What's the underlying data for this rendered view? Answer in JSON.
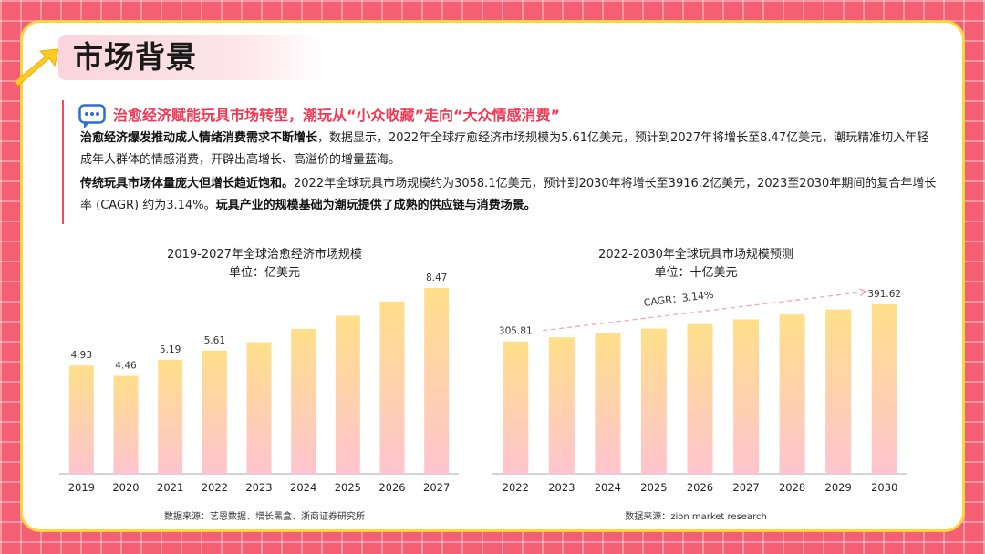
{
  "page": {
    "title": "市场背景"
  },
  "intro": {
    "headline": "治愈经济赋能玩具市场转型，潮玩从“小众收藏”走向“大众情感消费”",
    "p1_bold": "治愈经济爆发推动成人情绪消费需求不断增长",
    "p1_text": "，数据显示，2022年全球疗愈经济市场规模为5.61亿美元，预计到2027年将增长至8.47亿美元，潮玩精准切入年轻成年人群体的情感消费，开辟出高增长、高溢价的增量蓝海。",
    "p2_bold": "传统玩具市场体量庞大但增长趋近饱和。",
    "p2_text": "2022年全球玩具市场规模约为3058.1亿美元，预计到2030年将增长至3916.2亿美元，2023至2030年期间的复合年增长率 (CAGR) 约为3.14%。",
    "p2_bold2": "玩具产业的规模基础为潮玩提供了成熟的供应链与消费场景。"
  },
  "colors": {
    "accent": "#f03a55",
    "bar_top": "#ffdf8a",
    "bar_bottom": "#ffc4cf",
    "frame": "#ffd53d"
  },
  "chart_data": [
    {
      "type": "bar",
      "title": "2019-2027年全球治愈经济市场规模",
      "subtitle": "单位：亿美元",
      "source": "数据来源：艺恩数据、增长黑盒、浙商证券研究所",
      "categories": [
        "2019",
        "2020",
        "2021",
        "2022",
        "2023",
        "2024",
        "2025",
        "2026",
        "2027"
      ],
      "values": [
        4.93,
        4.46,
        5.19,
        5.61,
        6.0,
        6.6,
        7.2,
        7.85,
        8.47
      ],
      "labels": [
        "4.93",
        "4.46",
        "5.19",
        "5.61",
        "",
        "",
        "",
        "",
        "8.47"
      ],
      "ylim": [
        0,
        8.8
      ],
      "grid": false
    },
    {
      "type": "bar",
      "title": "2022-2030年全球玩具市场规模预测",
      "subtitle": "单位：十亿美元",
      "source": "数据来源：zion market research",
      "categories": [
        "2022",
        "2023",
        "2024",
        "2025",
        "2026",
        "2027",
        "2028",
        "2029",
        "2030"
      ],
      "values": [
        305.81,
        315.4,
        325.3,
        335.5,
        346.0,
        356.9,
        368.1,
        379.7,
        391.62
      ],
      "labels": [
        "305.81",
        "",
        "",
        "",
        "",
        "",
        "",
        "",
        "391.62"
      ],
      "annotation": "CAGR：3.14%",
      "ylim": [
        0,
        400
      ],
      "grid": false
    }
  ]
}
